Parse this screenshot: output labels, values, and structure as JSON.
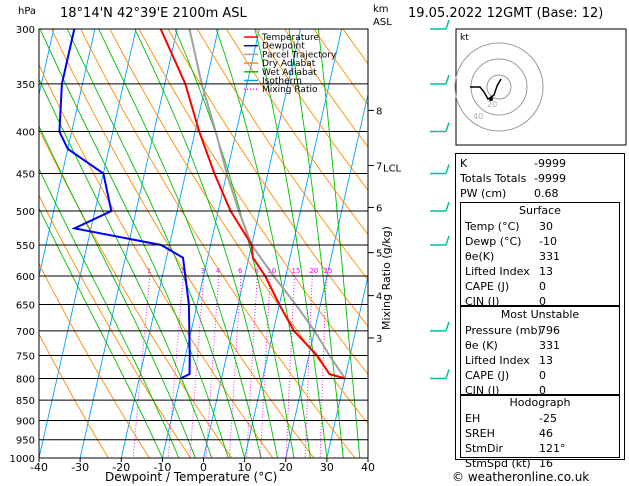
{
  "header": {
    "hpa_unit": "hPa",
    "location": "18°14'N  42°39'E  2100m  ASL",
    "km_unit": "km",
    "asl_unit": "ASL",
    "datetime": "19.05.2022  12GMT  (Base: 12)"
  },
  "axes": {
    "xlabel": "Dewpoint / Temperature (°C)",
    "mixing_ratio_label": "Mixing Ratio (g/kg)",
    "lcl_label": "LCL"
  },
  "footer": "© weatheronline.co.uk",
  "hodograph": {
    "label": "kt",
    "ring_labels": [
      "20",
      "40"
    ]
  },
  "legend": [
    {
      "name": "Temperature",
      "color": "#ff0000",
      "style": "solid"
    },
    {
      "name": "Dewpoint",
      "color": "#0000ff",
      "style": "solid"
    },
    {
      "name": "Parcel Trajectory",
      "color": "#a0a0a0",
      "style": "solid"
    },
    {
      "name": "Dry Adiabat",
      "color": "#ff8c00",
      "style": "solid"
    },
    {
      "name": "Wet Adiabat",
      "color": "#00c000",
      "style": "solid"
    },
    {
      "name": "Isotherm",
      "color": "#00a0ff",
      "style": "solid"
    },
    {
      "name": "Mixing Ratio",
      "color": "#ff00ff",
      "style": "dotted"
    }
  ],
  "indices": [
    {
      "k": "K",
      "v": "-9999"
    },
    {
      "k": "Totals Totals",
      "v": "-9999"
    },
    {
      "k": "PW (cm)",
      "v": "0.68"
    }
  ],
  "surface": {
    "title": "Surface",
    "rows": [
      {
        "k": "Temp (°C)",
        "v": "30"
      },
      {
        "k": "Dewp (°C)",
        "v": "-10"
      },
      {
        "k": "θe(K)",
        "v": "331"
      },
      {
        "k": "Lifted Index",
        "v": "13"
      },
      {
        "k": "CAPE (J)",
        "v": "0"
      },
      {
        "k": "CIN (J)",
        "v": "0"
      }
    ]
  },
  "most_unstable": {
    "title": "Most Unstable",
    "rows": [
      {
        "k": "Pressure (mb)",
        "v": "796"
      },
      {
        "k": "θe (K)",
        "v": "331"
      },
      {
        "k": "Lifted Index",
        "v": "13"
      },
      {
        "k": "CAPE (J)",
        "v": "0"
      },
      {
        "k": "CIN (J)",
        "v": "0"
      }
    ]
  },
  "hodograph_table": {
    "title": "Hodograph",
    "rows": [
      {
        "k": "EH",
        "v": "-25"
      },
      {
        "k": "SREH",
        "v": "46"
      },
      {
        "k": "StmDir",
        "v": "121°"
      },
      {
        "k": "StmSpd (kt)",
        "v": "16"
      }
    ]
  },
  "chart_data": {
    "type": "skew-t",
    "pressure_levels": [
      300,
      350,
      400,
      450,
      500,
      550,
      600,
      650,
      700,
      750,
      800,
      850,
      900,
      950,
      1000
    ],
    "x_ticks": [
      -40,
      -30,
      -20,
      -10,
      0,
      10,
      20,
      30,
      40
    ],
    "xlim": [
      -40,
      40
    ],
    "ylim": [
      1000,
      300
    ],
    "km_ticks": [
      {
        "km": 8,
        "p": 377
      },
      {
        "km": 7,
        "p": 440
      },
      {
        "km": 6,
        "p": 495
      },
      {
        "km": 5,
        "p": 562
      },
      {
        "km": 4,
        "p": 634
      },
      {
        "km": 3,
        "p": 714
      }
    ],
    "mixing_ratio_labels": [
      "1",
      "2",
      "3",
      "4",
      "6",
      "8",
      "10",
      "15",
      "20",
      "25"
    ],
    "temperature": [
      {
        "p": 300,
        "t": -34
      },
      {
        "p": 350,
        "t": -25
      },
      {
        "p": 400,
        "t": -19
      },
      {
        "p": 450,
        "t": -13
      },
      {
        "p": 500,
        "t": -7
      },
      {
        "p": 550,
        "t": 0
      },
      {
        "p": 570,
        "t": 1
      },
      {
        "p": 600,
        "t": 5
      },
      {
        "p": 650,
        "t": 10
      },
      {
        "p": 700,
        "t": 15
      },
      {
        "p": 750,
        "t": 22
      },
      {
        "p": 790,
        "t": 26
      },
      {
        "p": 800,
        "t": 30
      }
    ],
    "dewpoint": [
      {
        "p": 300,
        "t": -55
      },
      {
        "p": 350,
        "t": -55
      },
      {
        "p": 400,
        "t": -53
      },
      {
        "p": 420,
        "t": -50
      },
      {
        "p": 450,
        "t": -40
      },
      {
        "p": 500,
        "t": -36
      },
      {
        "p": 525,
        "t": -44
      },
      {
        "p": 550,
        "t": -22
      },
      {
        "p": 570,
        "t": -16
      },
      {
        "p": 650,
        "t": -12
      },
      {
        "p": 750,
        "t": -9
      },
      {
        "p": 790,
        "t": -8
      },
      {
        "p": 800,
        "t": -10
      }
    ],
    "parcel": [
      {
        "p": 300,
        "t": -27
      },
      {
        "p": 350,
        "t": -21
      },
      {
        "p": 400,
        "t": -15
      },
      {
        "p": 450,
        "t": -10
      },
      {
        "p": 500,
        "t": -5
      },
      {
        "p": 550,
        "t": 0
      },
      {
        "p": 600,
        "t": 7
      },
      {
        "p": 650,
        "t": 14
      },
      {
        "p": 700,
        "t": 20
      },
      {
        "p": 750,
        "t": 25
      },
      {
        "p": 800,
        "t": 30
      }
    ],
    "wind_barb_pressures": [
      300,
      350,
      400,
      450,
      500,
      550,
      700,
      800
    ]
  }
}
